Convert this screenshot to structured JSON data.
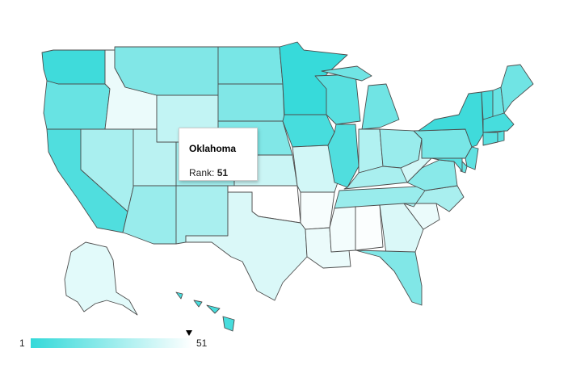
{
  "tooltip": {
    "state": "Oklahoma",
    "rank_label": "Rank:",
    "rank_value": "51"
  },
  "legend": {
    "min": "1",
    "max": "51",
    "color_min": "#33d9d9",
    "color_max": "#ffffff",
    "marker_value": 51
  },
  "states": [
    {
      "id": "WA",
      "rank": 4
    },
    {
      "id": "OR",
      "rank": 14
    },
    {
      "id": "CA",
      "rank": 8
    },
    {
      "id": "NV",
      "rank": 30
    },
    {
      "id": "ID",
      "rank": 46
    },
    {
      "id": "MT",
      "rank": 20
    },
    {
      "id": "WY",
      "rank": 36
    },
    {
      "id": "UT",
      "rank": 34
    },
    {
      "id": "AZ",
      "rank": 26
    },
    {
      "id": "CO",
      "rank": 28
    },
    {
      "id": "NM",
      "rank": 30
    },
    {
      "id": "ND",
      "rank": 18
    },
    {
      "id": "SD",
      "rank": 20
    },
    {
      "id": "NE",
      "rank": 20
    },
    {
      "id": "KS",
      "rank": 38
    },
    {
      "id": "OK",
      "rank": 51
    },
    {
      "id": "TX",
      "rank": 42
    },
    {
      "id": "MN",
      "rank": 2
    },
    {
      "id": "IA",
      "rank": 6
    },
    {
      "id": "MO",
      "rank": 40
    },
    {
      "id": "AR",
      "rank": 49
    },
    {
      "id": "LA",
      "rank": 46
    },
    {
      "id": "WI",
      "rank": 10
    },
    {
      "id": "IL",
      "rank": 8
    },
    {
      "id": "MI",
      "rank": 16
    },
    {
      "id": "IN",
      "rank": 32
    },
    {
      "id": "OH",
      "rank": 26
    },
    {
      "id": "KY",
      "rank": 30
    },
    {
      "id": "TN",
      "rank": 26
    },
    {
      "id": "MS",
      "rank": 48
    },
    {
      "id": "AL",
      "rank": 50
    },
    {
      "id": "GA",
      "rank": 42
    },
    {
      "id": "FL",
      "rank": 20
    },
    {
      "id": "SC",
      "rank": 46
    },
    {
      "id": "NC",
      "rank": 30
    },
    {
      "id": "VA",
      "rank": 22
    },
    {
      "id": "WV",
      "rank": 40
    },
    {
      "id": "PA",
      "rank": 18
    },
    {
      "id": "NY",
      "rank": 4
    },
    {
      "id": "VT",
      "rank": 6
    },
    {
      "id": "NH",
      "rank": 14
    },
    {
      "id": "ME",
      "rank": 16
    },
    {
      "id": "MA",
      "rank": 6
    },
    {
      "id": "CT",
      "rank": 10
    },
    {
      "id": "RI",
      "rank": 10
    },
    {
      "id": "NJ",
      "rank": 12
    },
    {
      "id": "DE",
      "rank": 14
    },
    {
      "id": "MD",
      "rank": 10
    },
    {
      "id": "AK",
      "rank": 44
    },
    {
      "id": "HI",
      "rank": 6
    }
  ]
}
